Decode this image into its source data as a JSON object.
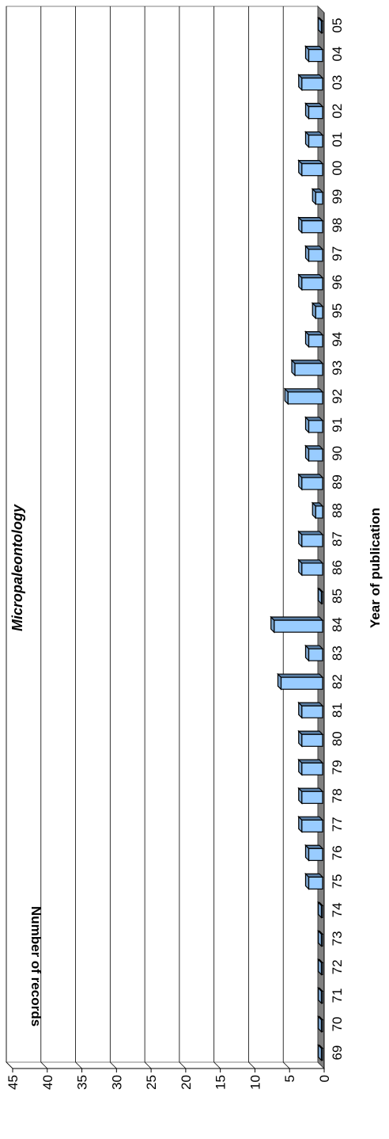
{
  "chart_data": {
    "type": "bar",
    "title": "Micropaleontology",
    "xlabel": "Year of publication",
    "ylabel": "Number of records",
    "categories": [
      "69",
      "70",
      "71",
      "72",
      "73",
      "74",
      "75",
      "76",
      "77",
      "78",
      "79",
      "80",
      "81",
      "82",
      "83",
      "84",
      "85",
      "86",
      "87",
      "88",
      "89",
      "90",
      "91",
      "92",
      "93",
      "94",
      "95",
      "96",
      "97",
      "98",
      "99",
      "00",
      "01",
      "02",
      "03",
      "04",
      "05"
    ],
    "values": [
      0,
      0,
      0,
      0,
      0,
      0,
      2,
      2,
      3,
      3,
      3,
      3,
      3,
      6,
      2,
      7,
      0,
      3,
      3,
      1,
      3,
      2,
      2,
      5,
      4,
      2,
      1,
      3,
      2,
      3,
      1,
      3,
      2,
      2,
      3,
      2,
      0
    ],
    "ylim": [
      0,
      45
    ],
    "yticks": [
      "0",
      "5",
      "10",
      "15",
      "20",
      "25",
      "30",
      "35",
      "40",
      "45"
    ],
    "grid": true,
    "bar_color": "#99ccff",
    "floor_color": "#808080"
  }
}
